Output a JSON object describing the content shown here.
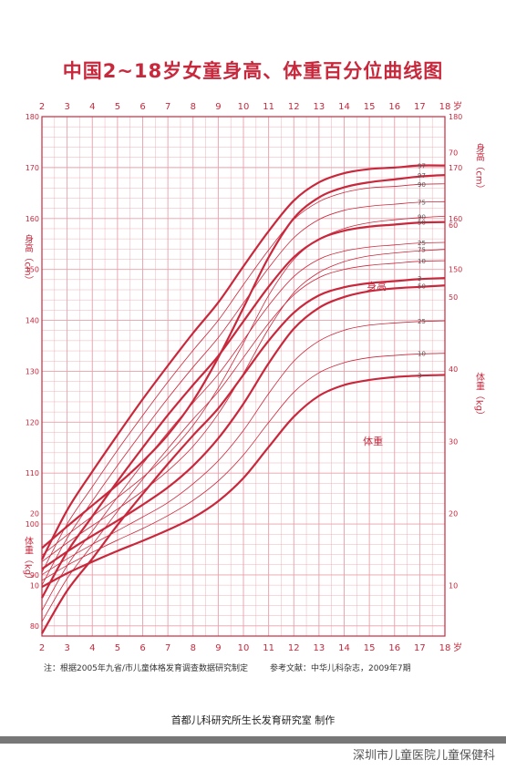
{
  "title": "中国2~18岁女童身高、体重百分位曲线图",
  "age_unit": "岁",
  "height_label_left": "身高（cm）",
  "height_label_right": "身高（cm）",
  "weight_label_left": "体重（kg）",
  "weight_label_right": "体重（kg）",
  "height_curve_label": "身高",
  "weight_curve_label": "体重",
  "note_left": "注：根据2005年九省/市儿童体格发育调查数据研究制定",
  "note_right": "参考文献：中华儿科杂志，2009年7期",
  "footer": "首都儿科研究所生长发育研究室 制作",
  "watermark": "深圳市儿童医院儿童保健科",
  "colors": {
    "line": "#c8283c",
    "grid": "#e8a0aa",
    "text": "#c8283c"
  },
  "chart_data": {
    "type": "line",
    "x_ticks": [
      2,
      3,
      4,
      5,
      6,
      7,
      8,
      9,
      10,
      11,
      12,
      13,
      14,
      15,
      16,
      17,
      18
    ],
    "xlim": [
      2,
      18
    ],
    "height_chart": {
      "ylim": [
        78,
        180
      ],
      "y_ticks_left": [
        80,
        90,
        100,
        110,
        120,
        130,
        140,
        150,
        160,
        170,
        180
      ],
      "y_ticks_right": [
        150,
        160,
        170,
        180
      ],
      "ages": [
        2,
        3,
        4,
        5,
        6,
        7,
        8,
        9,
        10,
        11,
        12,
        13,
        14,
        15,
        16,
        17,
        18
      ],
      "series": [
        {
          "name": "97",
          "major": true,
          "values": [
            93.0,
            102.7,
            110.3,
            117.5,
            124.5,
            131.1,
            137.5,
            143.5,
            150.6,
            157.5,
            163.5,
            167.1,
            168.9,
            169.7,
            170.0,
            170.4,
            170.4
          ]
        },
        {
          "name": "90",
          "major": false,
          "values": [
            90.5,
            100.0,
            107.3,
            114.5,
            121.3,
            127.9,
            134.1,
            140.0,
            147.0,
            153.8,
            159.8,
            163.3,
            165.1,
            166.0,
            166.3,
            166.7,
            166.8
          ]
        },
        {
          "name": "75",
          "major": false,
          "values": [
            88.0,
            97.2,
            104.5,
            111.5,
            118.2,
            124.7,
            130.8,
            136.6,
            143.4,
            150.3,
            156.2,
            159.8,
            161.6,
            162.4,
            162.8,
            163.2,
            163.3
          ]
        },
        {
          "name": "50",
          "major": true,
          "values": [
            85.5,
            94.5,
            101.5,
            108.4,
            115.0,
            121.4,
            127.3,
            133.0,
            139.8,
            146.6,
            152.4,
            155.9,
            157.6,
            158.4,
            158.8,
            159.2,
            159.3
          ]
        },
        {
          "name": "25",
          "major": false,
          "values": [
            83.0,
            91.8,
            98.6,
            105.3,
            111.8,
            118.0,
            123.8,
            129.4,
            136.1,
            142.9,
            148.6,
            152.0,
            153.6,
            154.4,
            154.8,
            155.2,
            155.3
          ]
        },
        {
          "name": "10",
          "major": false,
          "values": [
            80.8,
            89.3,
            95.9,
            102.5,
            108.8,
            114.8,
            120.6,
            126.0,
            132.7,
            139.4,
            145.0,
            148.4,
            150.0,
            150.8,
            151.2,
            151.6,
            151.7
          ]
        },
        {
          "name": "3",
          "major": true,
          "values": [
            78.5,
            86.9,
            93.2,
            99.8,
            105.9,
            111.8,
            117.4,
            122.7,
            129.3,
            136.0,
            141.5,
            144.9,
            146.5,
            147.3,
            147.7,
            148.1,
            148.3
          ]
        }
      ]
    },
    "weight_chart": {
      "ylim": [
        3,
        75
      ],
      "y_ticks_left": [
        10,
        20
      ],
      "y_ticks_right": [
        10,
        20,
        30,
        40,
        50,
        60,
        70
      ],
      "ages": [
        2,
        3,
        4,
        5,
        6,
        7,
        8,
        9,
        10,
        11,
        12,
        13,
        14,
        15,
        16,
        17,
        18
      ],
      "series": [
        {
          "name": "97",
          "major": true,
          "values": [
            15.2,
            18.2,
            21.1,
            24.0,
            27.2,
            30.9,
            35.6,
            41.6,
            48.5,
            55.5,
            60.9,
            63.8,
            65.2,
            65.9,
            66.3,
            66.7,
            66.9
          ]
        },
        {
          "name": "90",
          "major": false,
          "values": [
            14.2,
            17.0,
            19.6,
            22.2,
            25.0,
            28.2,
            32.2,
            37.4,
            43.6,
            50.2,
            55.2,
            58.0,
            59.5,
            60.3,
            60.7,
            61.0,
            61.2
          ]
        },
        {
          "name": "75",
          "major": false,
          "values": [
            13.3,
            15.9,
            18.3,
            20.6,
            23.1,
            25.9,
            29.3,
            33.8,
            39.4,
            45.6,
            50.6,
            53.4,
            54.9,
            55.7,
            56.1,
            56.4,
            56.6
          ]
        },
        {
          "name": "50",
          "major": true,
          "values": [
            12.3,
            14.7,
            16.9,
            19.0,
            21.2,
            23.6,
            26.6,
            30.4,
            35.2,
            40.8,
            45.6,
            48.5,
            50.0,
            50.8,
            51.2,
            51.4,
            51.6
          ]
        },
        {
          "name": "25",
          "major": false,
          "values": [
            11.5,
            13.7,
            15.7,
            17.6,
            19.5,
            21.5,
            24.1,
            27.3,
            31.5,
            36.6,
            41.1,
            43.9,
            45.4,
            46.1,
            46.4,
            46.6,
            46.7
          ]
        },
        {
          "name": "10",
          "major": false,
          "values": [
            10.7,
            12.8,
            14.6,
            16.3,
            17.9,
            19.7,
            21.8,
            24.5,
            28.1,
            32.6,
            36.8,
            39.5,
            40.9,
            41.6,
            41.9,
            42.1,
            42.2
          ]
        },
        {
          "name": "3",
          "major": true,
          "values": [
            9.8,
            11.7,
            13.3,
            14.8,
            16.2,
            17.7,
            19.4,
            21.7,
            24.9,
            29.2,
            33.4,
            36.3,
            37.8,
            38.5,
            38.9,
            39.1,
            39.2
          ]
        }
      ]
    }
  }
}
